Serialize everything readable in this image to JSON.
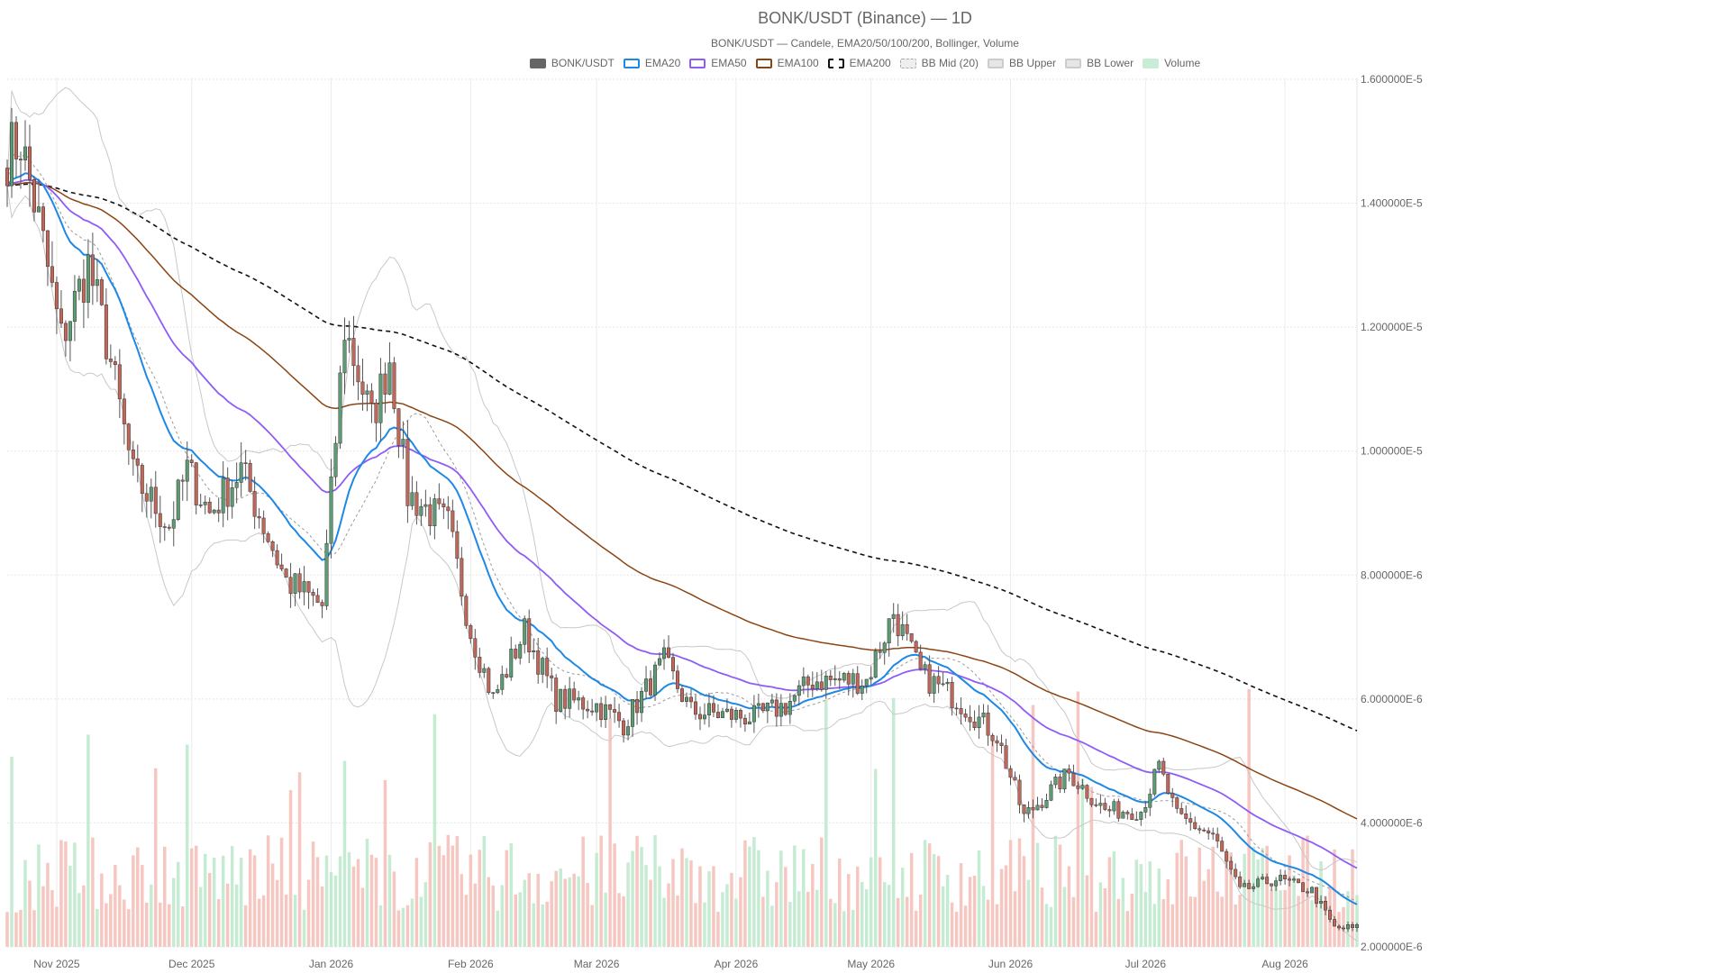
{
  "chart_data": {
    "type": "candlestick",
    "title": "BONK/USDT (Binance) — 1D",
    "subtitle": "BONK/USDT — Candele, EMA20/50/100/200, Bollinger, Volume",
    "y_ticks": [
      "1.600000E-5",
      "1.400000E-5",
      "1.200000E-5",
      "1.000000E-5",
      "8.000000E-6",
      "6.000000E-6",
      "4.000000E-6",
      "2.000000E-6"
    ],
    "y_tick_values": [
      1.6e-05,
      1.4e-05,
      1.2e-05,
      1e-05,
      8e-06,
      6e-06,
      4e-06,
      2e-06
    ],
    "ylim": [
      2e-06,
      1.6e-05
    ],
    "x_ticks": [
      "Nov 2025",
      "Dec 2025",
      "Jan 2026",
      "Feb 2026",
      "Mar 2026",
      "Apr 2026",
      "May 2026",
      "Jun 2026",
      "Jul 2026",
      "Aug 2026"
    ],
    "x_tick_dates": [
      "2025-11-01",
      "2025-12-01",
      "2026-01-01",
      "2026-02-01",
      "2026-03-01",
      "2026-04-01",
      "2026-05-01",
      "2026-06-01",
      "2026-07-01",
      "2026-08-01"
    ],
    "x_range": [
      "2025-10-21",
      "2026-08-17"
    ],
    "grid": true,
    "legend_position": "top-center",
    "legend": [
      {
        "label": "BONK/USDT",
        "color": "#666666",
        "style": "solid-box"
      },
      {
        "label": "EMA20",
        "color": "#1e88e5",
        "style": "line"
      },
      {
        "label": "EMA50",
        "color": "#8e5cf7",
        "style": "line"
      },
      {
        "label": "EMA100",
        "color": "#8b4513",
        "style": "line"
      },
      {
        "label": "EMA200",
        "color": "#111111",
        "style": "dashed"
      },
      {
        "label": "BB Mid (20)",
        "color": "#aaaaaa",
        "style": "dashed"
      },
      {
        "label": "BB Upper",
        "color": "#cccccc",
        "style": "line"
      },
      {
        "label": "BB Lower",
        "color": "#cccccc",
        "style": "line"
      },
      {
        "label": "Volume",
        "color": "#c8ecd6",
        "style": "solid-box"
      }
    ],
    "colors": {
      "up": "#5c9c74",
      "down": "#c1675a",
      "volume_up": "#c6ebd3",
      "volume_down": "#f6c6c0"
    },
    "anchors": [
      {
        "date": "2025-10-21",
        "close": 1.48e-05
      },
      {
        "date": "2025-10-24",
        "close": 1.5e-05
      },
      {
        "date": "2025-10-28",
        "close": 1.37e-05
      },
      {
        "date": "2025-11-02",
        "close": 1.18e-05
      },
      {
        "date": "2025-11-08",
        "close": 1.3e-05
      },
      {
        "date": "2025-11-12",
        "close": 1.18e-05
      },
      {
        "date": "2025-11-18",
        "close": 9.6e-06
      },
      {
        "date": "2025-11-26",
        "close": 8.8e-06
      },
      {
        "date": "2025-11-30",
        "close": 9.7e-06
      },
      {
        "date": "2025-12-05",
        "close": 9e-06
      },
      {
        "date": "2025-12-12",
        "close": 9.7e-06
      },
      {
        "date": "2025-12-22",
        "close": 7.9e-06
      },
      {
        "date": "2025-12-30",
        "close": 7.5e-06
      },
      {
        "date": "2026-01-04",
        "close": 1.2e-05
      },
      {
        "date": "2026-01-10",
        "close": 1.05e-05
      },
      {
        "date": "2026-01-14",
        "close": 1.15e-05
      },
      {
        "date": "2026-01-18",
        "close": 9.3e-06
      },
      {
        "date": "2026-01-27",
        "close": 8.8e-06
      },
      {
        "date": "2026-02-01",
        "close": 7.1e-06
      },
      {
        "date": "2026-02-06",
        "close": 6e-06
      },
      {
        "date": "2026-02-13",
        "close": 7.1e-06
      },
      {
        "date": "2026-02-20",
        "close": 6e-06
      },
      {
        "date": "2026-03-01",
        "close": 5.9e-06
      },
      {
        "date": "2026-03-07",
        "close": 5.6e-06
      },
      {
        "date": "2026-03-16",
        "close": 6.6e-06
      },
      {
        "date": "2026-03-22",
        "close": 5.8e-06
      },
      {
        "date": "2026-04-05",
        "close": 5.7e-06
      },
      {
        "date": "2026-04-12",
        "close": 5.9e-06
      },
      {
        "date": "2026-04-18",
        "close": 6.3e-06
      },
      {
        "date": "2026-04-30",
        "close": 6.3e-06
      },
      {
        "date": "2026-05-06",
        "close": 7.4e-06
      },
      {
        "date": "2026-05-12",
        "close": 6.4e-06
      },
      {
        "date": "2026-05-20",
        "close": 6e-06
      },
      {
        "date": "2026-05-29",
        "close": 5.4e-06
      },
      {
        "date": "2026-06-04",
        "close": 4.1e-06
      },
      {
        "date": "2026-06-14",
        "close": 4.8e-06
      },
      {
        "date": "2026-06-22",
        "close": 4.2e-06
      },
      {
        "date": "2026-06-30",
        "close": 4.2e-06
      },
      {
        "date": "2026-07-04",
        "close": 4.9e-06
      },
      {
        "date": "2026-07-08",
        "close": 4.1e-06
      },
      {
        "date": "2026-07-16",
        "close": 3.8e-06
      },
      {
        "date": "2026-07-22",
        "close": 2.9e-06
      },
      {
        "date": "2026-07-30",
        "close": 3.1e-06
      },
      {
        "date": "2026-08-07",
        "close": 2.9e-06
      },
      {
        "date": "2026-08-12",
        "close": 2.3e-06
      },
      {
        "date": "2026-08-17",
        "close": 2.3e-06
      }
    ]
  }
}
